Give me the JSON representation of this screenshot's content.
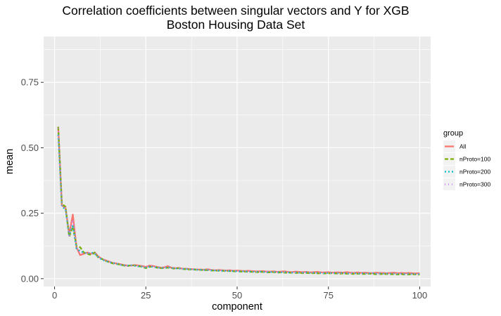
{
  "chart_data": {
    "type": "line",
    "title": "Correlation coefficients between singular vectors and Y for XGB",
    "subtitle": "Boston Housing Data Set",
    "xlabel": "component",
    "ylabel": "mean",
    "xlim": [
      -3,
      103
    ],
    "ylim": [
      -0.03,
      0.925
    ],
    "x_ticks": [
      0,
      25,
      50,
      75,
      100
    ],
    "y_ticks": [
      0.0,
      0.25,
      0.5,
      0.75
    ],
    "x_tick_labels": [
      "0",
      "25",
      "50",
      "75",
      "100"
    ],
    "y_tick_labels": [
      "0.00",
      "0.25",
      "0.50",
      "0.75"
    ],
    "grid": true,
    "legend_position": "right",
    "legend_title": "group",
    "x": [
      1,
      2,
      3,
      4,
      5,
      6,
      7,
      8,
      9,
      10,
      11,
      12,
      13,
      14,
      15,
      16,
      17,
      18,
      19,
      20,
      21,
      22,
      23,
      24,
      25,
      26,
      27,
      28,
      29,
      30,
      31,
      32,
      33,
      34,
      35,
      36,
      37,
      38,
      39,
      40,
      41,
      42,
      43,
      44,
      45,
      46,
      47,
      48,
      49,
      50,
      51,
      52,
      53,
      54,
      55,
      56,
      57,
      58,
      59,
      60,
      61,
      62,
      63,
      64,
      65,
      66,
      67,
      68,
      69,
      70,
      71,
      72,
      73,
      74,
      75,
      76,
      77,
      78,
      79,
      80,
      81,
      82,
      83,
      84,
      85,
      86,
      87,
      88,
      89,
      90,
      91,
      92,
      93,
      94,
      95,
      96,
      97,
      98,
      99,
      100
    ],
    "series": [
      {
        "name": "All",
        "color": "#F8766D",
        "dash": "solid",
        "values": [
          0.58,
          0.28,
          0.27,
          0.17,
          0.245,
          0.12,
          0.09,
          0.095,
          0.1,
          0.095,
          0.1,
          0.085,
          0.075,
          0.07,
          0.065,
          0.06,
          0.058,
          0.055,
          0.052,
          0.05,
          0.05,
          0.052,
          0.05,
          0.048,
          0.045,
          0.05,
          0.048,
          0.045,
          0.042,
          0.043,
          0.048,
          0.042,
          0.04,
          0.041,
          0.038,
          0.038,
          0.037,
          0.036,
          0.035,
          0.035,
          0.034,
          0.036,
          0.033,
          0.032,
          0.033,
          0.032,
          0.031,
          0.032,
          0.03,
          0.031,
          0.03,
          0.029,
          0.03,
          0.029,
          0.028,
          0.028,
          0.029,
          0.027,
          0.027,
          0.028,
          0.026,
          0.027,
          0.028,
          0.026,
          0.025,
          0.027,
          0.026,
          0.025,
          0.026,
          0.024,
          0.025,
          0.026,
          0.024,
          0.024,
          0.025,
          0.023,
          0.024,
          0.024,
          0.023,
          0.025,
          0.023,
          0.022,
          0.024,
          0.022,
          0.023,
          0.022,
          0.021,
          0.023,
          0.022,
          0.022,
          0.021,
          0.022,
          0.023,
          0.021,
          0.022,
          0.021,
          0.022,
          0.021,
          0.02,
          0.021
        ]
      },
      {
        "name": "nProto=100",
        "color": "#7CAE00",
        "dash": "5,3",
        "values": [
          0.58,
          0.285,
          0.275,
          0.16,
          0.2,
          0.125,
          0.12,
          0.1,
          0.095,
          0.09,
          0.1,
          0.08,
          0.075,
          0.068,
          0.062,
          0.058,
          0.056,
          0.054,
          0.05,
          0.048,
          0.052,
          0.05,
          0.048,
          0.045,
          0.04,
          0.045,
          0.046,
          0.042,
          0.04,
          0.04,
          0.042,
          0.04,
          0.038,
          0.04,
          0.037,
          0.036,
          0.035,
          0.035,
          0.034,
          0.033,
          0.033,
          0.032,
          0.031,
          0.031,
          0.03,
          0.03,
          0.029,
          0.029,
          0.028,
          0.028,
          0.027,
          0.027,
          0.026,
          0.026,
          0.025,
          0.025,
          0.026,
          0.024,
          0.024,
          0.025,
          0.023,
          0.024,
          0.023,
          0.022,
          0.023,
          0.022,
          0.022,
          0.021,
          0.022,
          0.021,
          0.021,
          0.02,
          0.021,
          0.02,
          0.02,
          0.021,
          0.02,
          0.019,
          0.02,
          0.019,
          0.019,
          0.018,
          0.019,
          0.018,
          0.018,
          0.019,
          0.018,
          0.017,
          0.018,
          0.017,
          0.018,
          0.017,
          0.017,
          0.016,
          0.017,
          0.016,
          0.016,
          0.017,
          0.016,
          0.015
        ]
      },
      {
        "name": "nProto=200",
        "color": "#00BFC4",
        "dash": "2,3",
        "values": [
          0.55,
          0.275,
          0.265,
          0.165,
          0.205,
          0.115,
          0.105,
          0.1,
          0.095,
          0.1,
          0.095,
          0.082,
          0.072,
          0.068,
          0.063,
          0.06,
          0.057,
          0.053,
          0.051,
          0.05,
          0.051,
          0.049,
          0.047,
          0.046,
          0.042,
          0.047,
          0.045,
          0.043,
          0.041,
          0.041,
          0.044,
          0.041,
          0.039,
          0.039,
          0.037,
          0.037,
          0.036,
          0.035,
          0.034,
          0.034,
          0.033,
          0.033,
          0.032,
          0.031,
          0.031,
          0.03,
          0.03,
          0.029,
          0.029,
          0.028,
          0.028,
          0.028,
          0.027,
          0.027,
          0.026,
          0.027,
          0.026,
          0.025,
          0.025,
          0.026,
          0.025,
          0.024,
          0.025,
          0.024,
          0.023,
          0.024,
          0.023,
          0.023,
          0.024,
          0.022,
          0.023,
          0.022,
          0.022,
          0.021,
          0.022,
          0.022,
          0.021,
          0.021,
          0.022,
          0.02,
          0.021,
          0.021,
          0.02,
          0.021,
          0.02,
          0.02,
          0.021,
          0.019,
          0.02,
          0.019,
          0.02,
          0.019,
          0.019,
          0.018,
          0.019,
          0.018,
          0.019,
          0.018,
          0.018,
          0.018
        ]
      },
      {
        "name": "nProto=300",
        "color": "#C77CFF",
        "dash": "1,4",
        "values": [
          0.575,
          0.28,
          0.27,
          0.165,
          0.225,
          0.12,
          0.1,
          0.095,
          0.1,
          0.095,
          0.098,
          0.083,
          0.074,
          0.069,
          0.064,
          0.06,
          0.057,
          0.054,
          0.051,
          0.049,
          0.051,
          0.05,
          0.048,
          0.047,
          0.043,
          0.048,
          0.046,
          0.043,
          0.041,
          0.042,
          0.045,
          0.041,
          0.039,
          0.04,
          0.037,
          0.037,
          0.036,
          0.035,
          0.035,
          0.034,
          0.033,
          0.034,
          0.032,
          0.032,
          0.031,
          0.031,
          0.03,
          0.03,
          0.029,
          0.029,
          0.028,
          0.028,
          0.028,
          0.027,
          0.027,
          0.027,
          0.026,
          0.026,
          0.026,
          0.026,
          0.025,
          0.025,
          0.025,
          0.024,
          0.024,
          0.024,
          0.024,
          0.023,
          0.023,
          0.023,
          0.023,
          0.022,
          0.022,
          0.022,
          0.022,
          0.022,
          0.021,
          0.021,
          0.021,
          0.021,
          0.021,
          0.02,
          0.021,
          0.02,
          0.02,
          0.02,
          0.02,
          0.02,
          0.019,
          0.019,
          0.02,
          0.019,
          0.019,
          0.019,
          0.019,
          0.018,
          0.018,
          0.018,
          0.018,
          0.018
        ]
      }
    ],
    "colors": {
      "panel": "#EBEBEB",
      "grid": "#FFFFFF",
      "text": "#4D4D4D",
      "legend_key_bg": "#F2F2F2"
    }
  }
}
